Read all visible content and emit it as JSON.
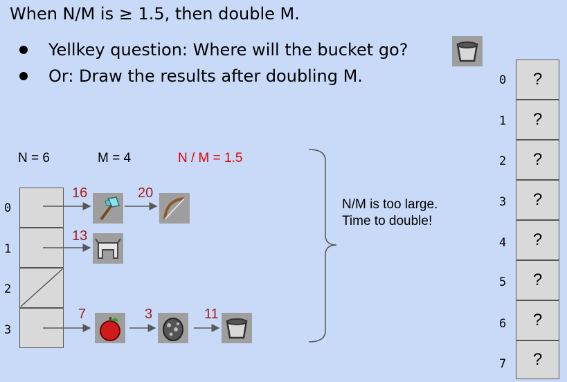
{
  "title": "When N/M is ≥ 1.5, then double M.",
  "bullets": [
    "Yellkey question: Where will the bucket go?",
    "Or: Draw the results after doubling M."
  ],
  "labels": {
    "n": "N = 6",
    "m": "M = 4",
    "ratio": "N / M = 1.5"
  },
  "note": {
    "line1": "N/M is too large.",
    "line2": "Time to double!"
  },
  "left_table": {
    "indices": [
      "0",
      "1",
      "2",
      "3"
    ],
    "items": [
      {
        "key": "16",
        "icon": "diamond-axe-icon"
      },
      {
        "key": "20",
        "icon": "bow-icon"
      },
      {
        "key": "13",
        "icon": "iron-helmet-icon"
      },
      {
        "key": "7",
        "icon": "apple-icon"
      },
      {
        "key": "3",
        "icon": "spawn-egg-icon"
      },
      {
        "key": "11",
        "icon": "bucket-icon"
      }
    ]
  },
  "right_table": {
    "indices": [
      "0",
      "1",
      "2",
      "3",
      "4",
      "5",
      "6",
      "7"
    ],
    "values": [
      "?",
      "?",
      "?",
      "?",
      "?",
      "?",
      "?",
      "?"
    ]
  },
  "colors": {
    "background": "#c9daf8",
    "cell": "#d9d9d9",
    "key_red": "#a61c1c",
    "ratio_red": "#e00000"
  }
}
